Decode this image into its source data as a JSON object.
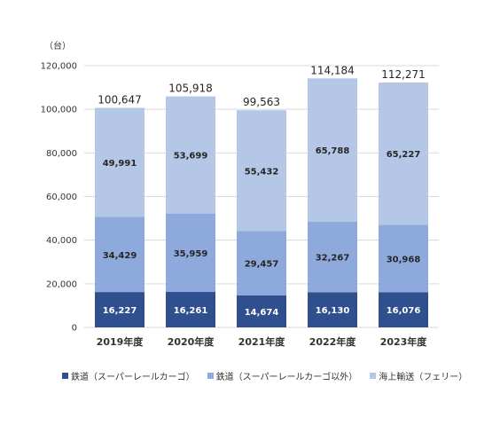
{
  "chart_data": {
    "type": "bar",
    "stacked": true,
    "unit_label": "（台）",
    "categories": [
      "2019年度",
      "2020年度",
      "2021年度",
      "2022年度",
      "2023年度"
    ],
    "series": [
      {
        "name": "鉄道（スーパーレールカーゴ）",
        "values": [
          16227,
          16261,
          14674,
          16130,
          16076
        ],
        "color": "#2f4f8f",
        "value_labels": [
          "16,227",
          "16,261",
          "14,674",
          "16,130",
          "16,076"
        ]
      },
      {
        "name": "鉄道（スーパーレールカーゴ以外）",
        "values": [
          34429,
          35959,
          29457,
          32267,
          30968
        ],
        "color": "#8ea9db",
        "value_labels": [
          "34,429",
          "35,959",
          "29,457",
          "32,267",
          "30,968"
        ]
      },
      {
        "name": "海上輸送（フェリー）",
        "values": [
          49991,
          53699,
          55432,
          65788,
          65227
        ],
        "color": "#b4c7e7",
        "value_labels": [
          "49,991",
          "53,699",
          "55,432",
          "65,788",
          "65,227"
        ]
      }
    ],
    "totals": [
      100647,
      105918,
      99563,
      114184,
      112271
    ],
    "total_labels": [
      "100,647",
      "105,918",
      "99,563",
      "114,184",
      "112,271"
    ],
    "ylim": [
      0,
      120000
    ],
    "yticks": [
      0,
      20000,
      40000,
      60000,
      80000,
      100000,
      120000
    ],
    "ytick_labels": [
      "0",
      "20,000",
      "40,000",
      "60,000",
      "80,000",
      "100,000",
      "120,000"
    ],
    "grid": true,
    "legend_position": "bottom"
  }
}
